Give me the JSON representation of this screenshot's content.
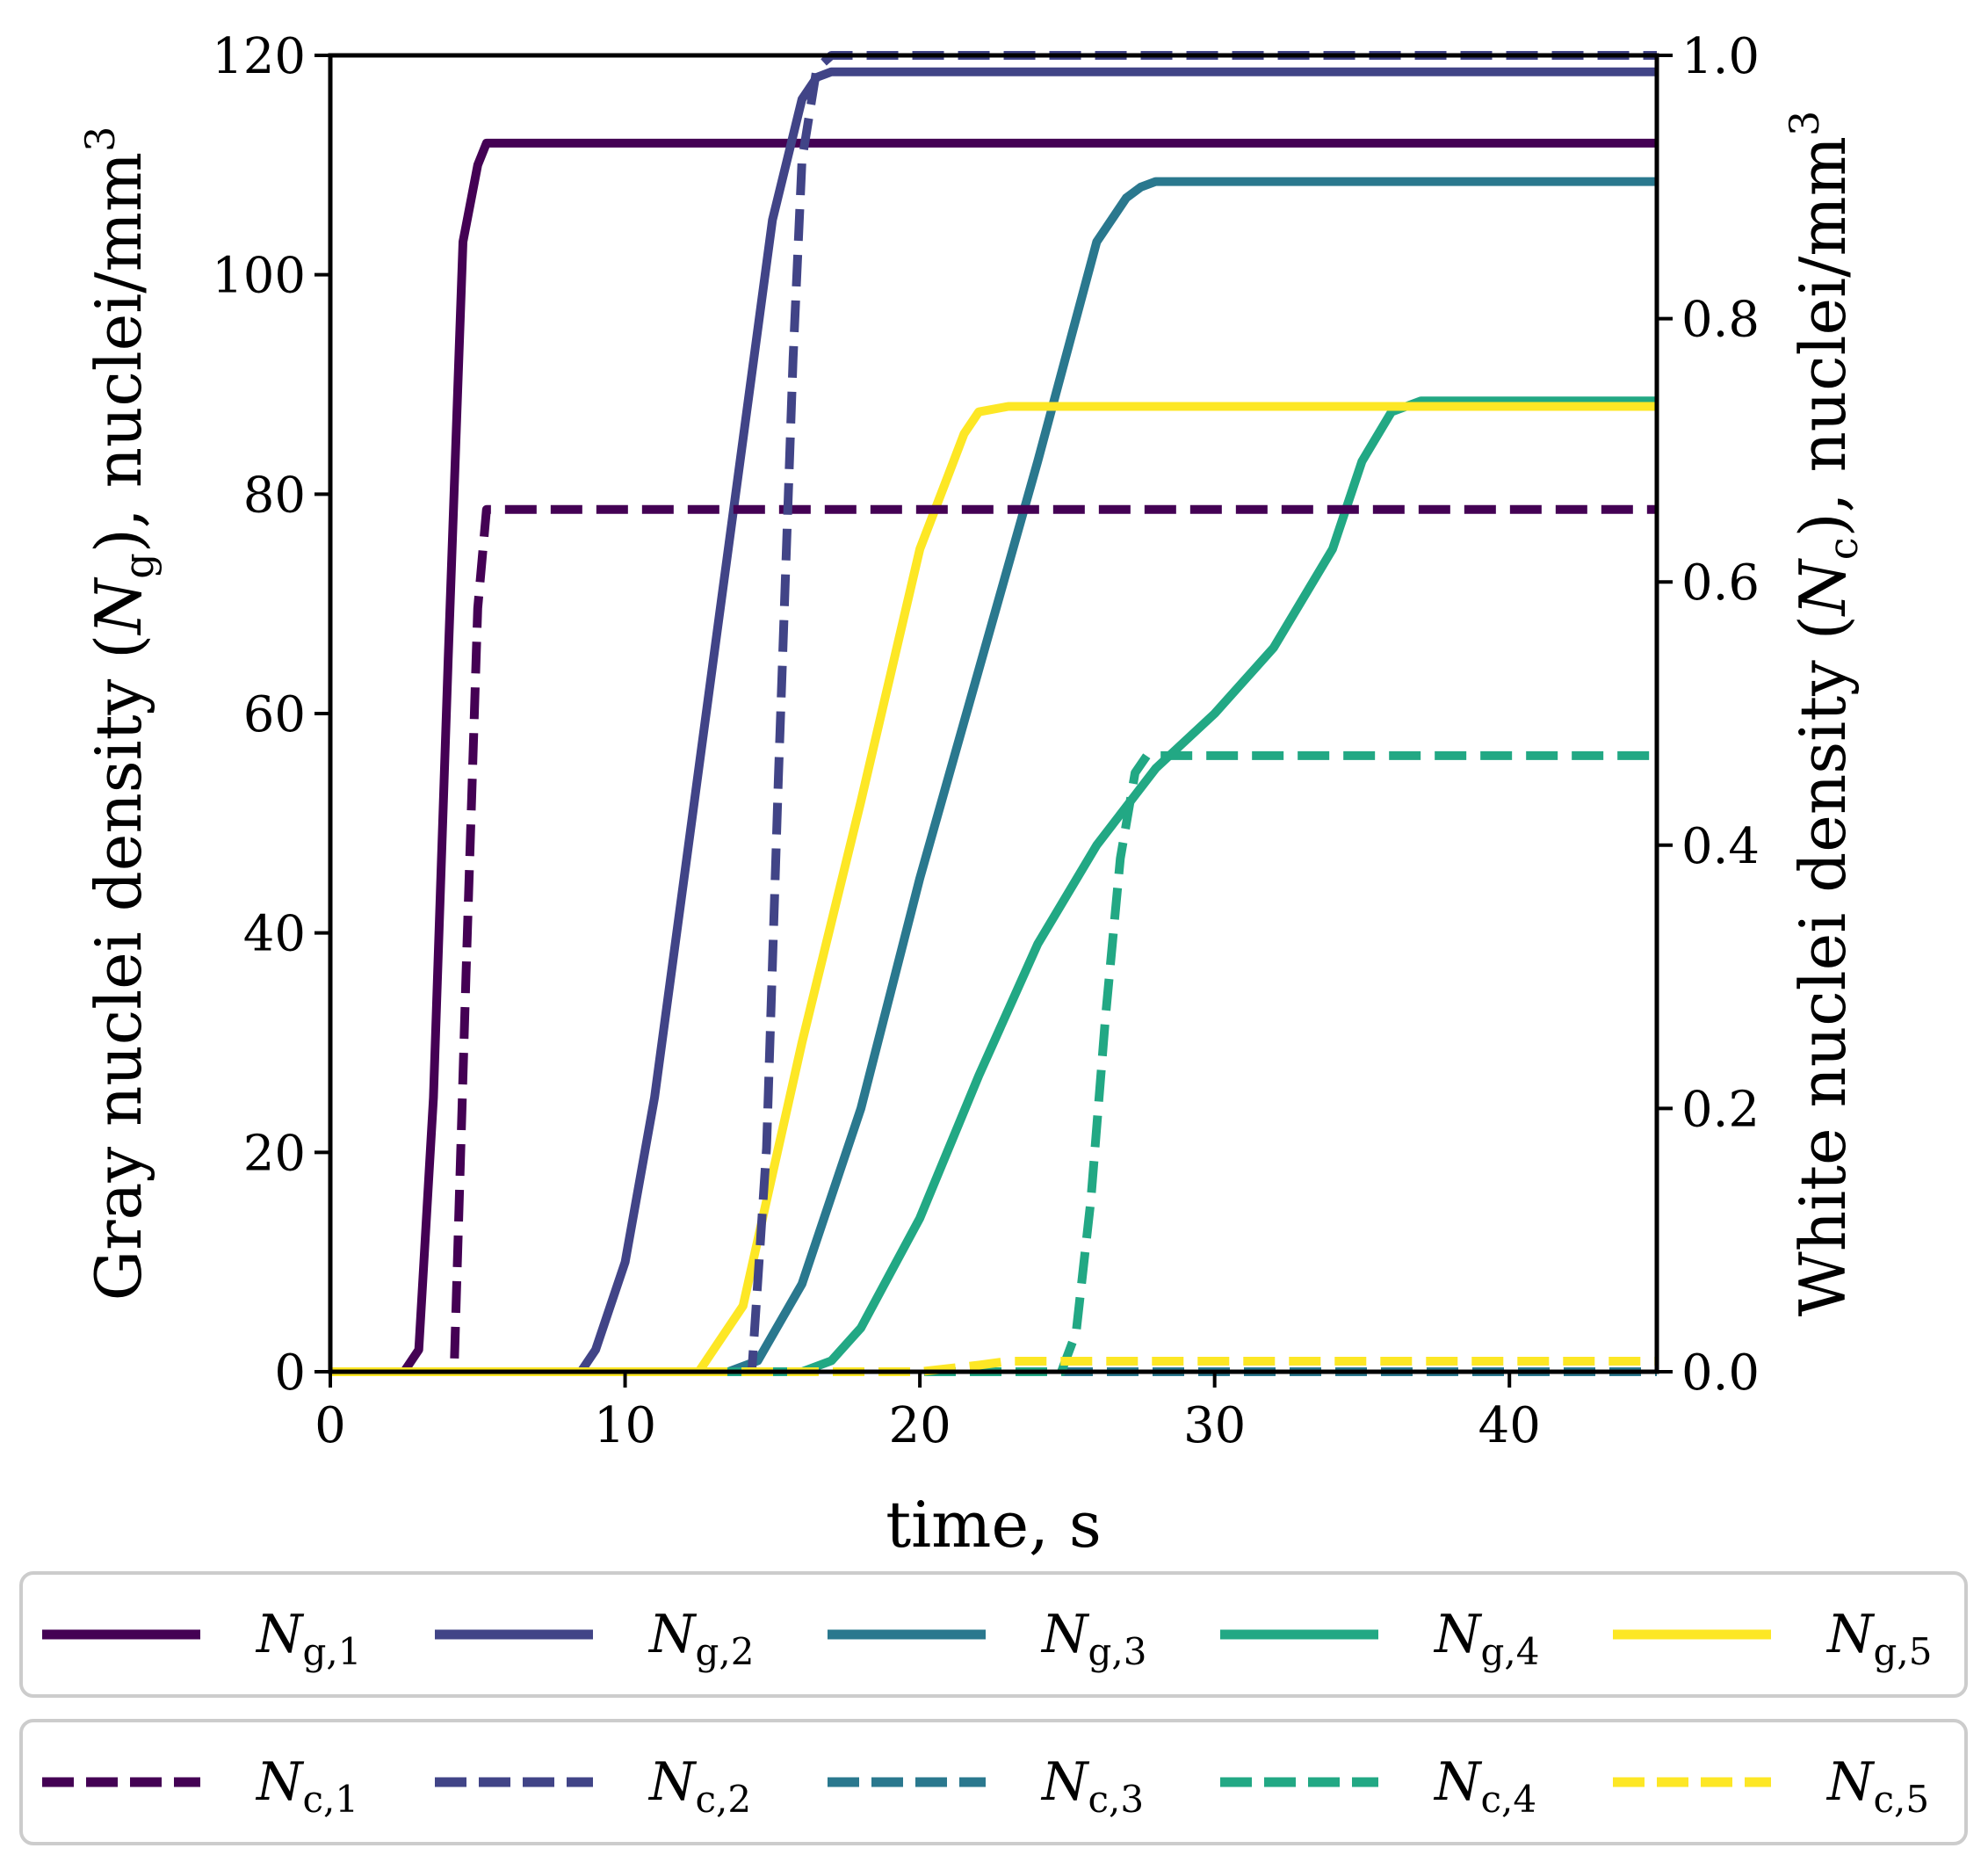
{
  "chart_data": {
    "type": "line",
    "xlabel": "time, s",
    "ylabel_left": "Gray nuclei density (N_g), nuclei/mm^3",
    "ylabel_right": "White nuclei density (N_c), nuclei/mm^3",
    "xlim": [
      0,
      45
    ],
    "ylim_left": [
      0,
      120
    ],
    "ylim_right": [
      0,
      1.0
    ],
    "xticks": [
      "0",
      "10",
      "20",
      "30",
      "40"
    ],
    "yticks_left": [
      "0",
      "20",
      "40",
      "60",
      "80",
      "100",
      "120"
    ],
    "yticks_right": [
      "0.0",
      "0.2",
      "0.4",
      "0.6",
      "0.8",
      "1.0"
    ],
    "grid": false,
    "legend_placement": "below plot, two boxed rows",
    "series": [
      {
        "name": "Ng,1",
        "axis": "left",
        "style": "solid",
        "color": "#440154",
        "x": [
          0,
          2.5,
          3.0,
          3.5,
          4.0,
          4.5,
          5.0,
          5.3,
          45
        ],
        "y": [
          0,
          0,
          2,
          25,
          65,
          103,
          110,
          112,
          112
        ]
      },
      {
        "name": "Ng,2",
        "axis": "left",
        "style": "solid",
        "color": "#414487",
        "x": [
          0,
          8.5,
          9.0,
          10.0,
          11.0,
          12.0,
          13.0,
          14.0,
          15.0,
          16.0,
          16.5,
          17.0,
          45
        ],
        "y": [
          0,
          0,
          2,
          10,
          25,
          45,
          65,
          85,
          105,
          116,
          118,
          118.5,
          118.5
        ]
      },
      {
        "name": "Ng,3",
        "axis": "left",
        "style": "solid",
        "color": "#2a788e",
        "x": [
          0,
          13.5,
          14.5,
          16.0,
          18.0,
          20.0,
          22.0,
          24.0,
          26.0,
          27.0,
          27.5,
          28.0,
          45
        ],
        "y": [
          0,
          0,
          1,
          8,
          24,
          45,
          64,
          83,
          103,
          107,
          108,
          108.5,
          108.5
        ]
      },
      {
        "name": "Ng,4",
        "axis": "left",
        "style": "solid",
        "color": "#22a884",
        "x": [
          0,
          16.0,
          17.0,
          18.0,
          20.0,
          22.0,
          24.0,
          26.0,
          28.0,
          30.0,
          32.0,
          34.0,
          35.0,
          36.0,
          37.0,
          45
        ],
        "y": [
          0,
          0,
          1,
          4,
          14,
          27,
          39,
          48,
          55,
          60,
          66,
          75,
          83,
          87.5,
          88.5,
          88.5
        ]
      },
      {
        "name": "Ng,5",
        "axis": "left",
        "style": "solid",
        "color": "#fde725",
        "x": [
          0,
          12.5,
          13.0,
          14.0,
          15.0,
          16.0,
          18.0,
          20.0,
          21.0,
          21.5,
          22.0,
          23.0,
          45
        ],
        "y": [
          0,
          0,
          2,
          6,
          18,
          30,
          52,
          75,
          82,
          85.5,
          87.5,
          88,
          88
        ]
      },
      {
        "name": "Nc,1",
        "axis": "right",
        "style": "dashed",
        "color": "#440154",
        "x": [
          0,
          4.2,
          4.6,
          5.0,
          5.3,
          45
        ],
        "y": [
          0,
          0,
          0.3,
          0.58,
          0.655,
          0.655
        ]
      },
      {
        "name": "Nc,2",
        "axis": "right",
        "style": "dashed",
        "color": "#414487",
        "x": [
          0,
          14.3,
          14.8,
          15.2,
          15.7,
          16.0,
          16.5,
          17.0,
          45
        ],
        "y": [
          0,
          0,
          0.17,
          0.45,
          0.77,
          0.92,
          0.99,
          1.0,
          1.0
        ]
      },
      {
        "name": "Nc,3",
        "axis": "right",
        "style": "dashed",
        "color": "#2a788e",
        "x": [
          0,
          45
        ],
        "y": [
          0,
          0
        ]
      },
      {
        "name": "Nc,4",
        "axis": "right",
        "style": "dashed",
        "color": "#22a884",
        "x": [
          0,
          24.8,
          25.3,
          25.8,
          26.3,
          26.8,
          27.3,
          27.7,
          45
        ],
        "y": [
          0,
          0,
          0.03,
          0.13,
          0.27,
          0.39,
          0.455,
          0.468,
          0.468
        ]
      },
      {
        "name": "Nc,5",
        "axis": "right",
        "style": "dashed",
        "color": "#fde725",
        "x": [
          0,
          20.0,
          22.0,
          23.0,
          45
        ],
        "y": [
          0,
          0,
          0.005,
          0.008,
          0.008
        ]
      }
    ]
  },
  "legend": {
    "row1": [
      {
        "base": "N",
        "sub": "g,1"
      },
      {
        "base": "N",
        "sub": "g,2"
      },
      {
        "base": "N",
        "sub": "g,3"
      },
      {
        "base": "N",
        "sub": "g,4"
      },
      {
        "base": "N",
        "sub": "g,5"
      }
    ],
    "row2": [
      {
        "base": "N",
        "sub": "c,1"
      },
      {
        "base": "N",
        "sub": "c,2"
      },
      {
        "base": "N",
        "sub": "c,3"
      },
      {
        "base": "N",
        "sub": "c,4"
      },
      {
        "base": "N",
        "sub": "c,5"
      }
    ]
  }
}
